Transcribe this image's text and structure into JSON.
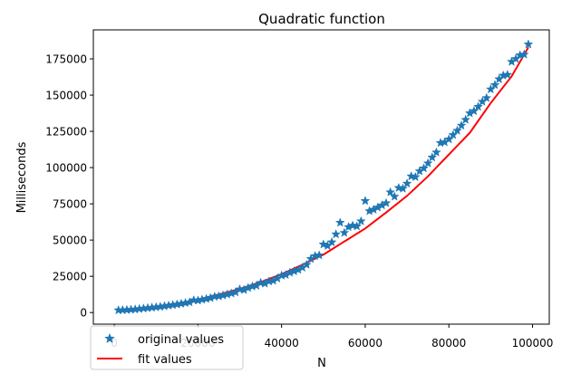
{
  "chart_data": {
    "type": "scatter",
    "title": "Quadratic function",
    "xlabel": "N",
    "ylabel": "Milliseconds",
    "xlim": [
      -5000,
      104000
    ],
    "ylim": [
      -8000,
      195000
    ],
    "xticks": [
      0,
      20000,
      40000,
      60000,
      80000,
      100000
    ],
    "xtick_labels": [
      "0",
      "20000",
      "40000",
      "60000",
      "80000",
      "100000"
    ],
    "yticks": [
      0,
      25000,
      50000,
      75000,
      100000,
      125000,
      150000,
      175000
    ],
    "ytick_labels": [
      "0",
      "25000",
      "50000",
      "75000",
      "100000",
      "125000",
      "150000",
      "175000"
    ],
    "grid": false,
    "legend": {
      "placement": "lower-left"
    },
    "series": [
      {
        "name": "original values",
        "kind": "scatter",
        "marker": "star",
        "color": "#1f77b4",
        "x": [
          1000,
          2000,
          3000,
          4000,
          5000,
          6000,
          7000,
          8000,
          9000,
          10000,
          11000,
          12000,
          13000,
          14000,
          15000,
          16000,
          17000,
          18000,
          19000,
          20000,
          21000,
          22000,
          23000,
          24000,
          25000,
          26000,
          27000,
          28000,
          29000,
          30000,
          31000,
          32000,
          33000,
          34000,
          35000,
          36000,
          37000,
          38000,
          39000,
          40000,
          41000,
          42000,
          43000,
          44000,
          45000,
          46000,
          47000,
          48000,
          49000,
          50000,
          51000,
          52000,
          53000,
          54000,
          55000,
          56000,
          57000,
          58000,
          59000,
          60000,
          61000,
          62000,
          63000,
          64000,
          65000,
          66000,
          67000,
          68000,
          69000,
          70000,
          71000,
          72000,
          73000,
          74000,
          75000,
          76000,
          77000,
          78000,
          79000,
          80000,
          81000,
          82000,
          83000,
          84000,
          85000,
          86000,
          87000,
          88000,
          89000,
          90000,
          91000,
          92000,
          93000,
          94000,
          95000,
          96000,
          97000,
          98000,
          99000
        ],
        "y": [
          1600,
          1700,
          1800,
          2000,
          2200,
          2500,
          2800,
          3100,
          3400,
          3700,
          4000,
          4400,
          4800,
          5200,
          5600,
          6100,
          6600,
          7100,
          8500,
          8300,
          8900,
          9400,
          10000,
          11000,
          11200,
          11800,
          12500,
          13200,
          14000,
          16000,
          15600,
          17000,
          18000,
          18500,
          20500,
          20000,
          21500,
          22000,
          23500,
          25500,
          26000,
          27500,
          28500,
          29500,
          31000,
          33000,
          37000,
          39000,
          39500,
          47000,
          46000,
          48500,
          54000,
          62000,
          55000,
          59000,
          60000,
          59500,
          63000,
          77000,
          70000,
          71000,
          72500,
          74000,
          75500,
          83000,
          80000,
          86000,
          85500,
          89000,
          94000,
          93500,
          97500,
          99500,
          103000,
          107000,
          110500,
          117000,
          117500,
          119500,
          122500,
          125500,
          129000,
          133000,
          137500,
          139000,
          142000,
          145500,
          148000,
          154000,
          157000,
          161000,
          163500,
          164000,
          173000,
          175000,
          177500,
          178000,
          185000
        ]
      },
      {
        "name": "fit values",
        "kind": "line",
        "color": "#ff0000",
        "x": [
          1000,
          5000,
          10000,
          15000,
          20000,
          25000,
          30000,
          35000,
          40000,
          45000,
          50000,
          55000,
          60000,
          65000,
          70000,
          75000,
          80000,
          85000,
          90000,
          95000,
          99000
        ],
        "y": [
          1700,
          2300,
          3800,
          6000,
          8900,
          12500,
          16300,
          21000,
          26500,
          33000,
          40000,
          49000,
          58000,
          69000,
          80500,
          94000,
          109000,
          124000,
          144500,
          163000,
          183000
        ]
      }
    ]
  }
}
